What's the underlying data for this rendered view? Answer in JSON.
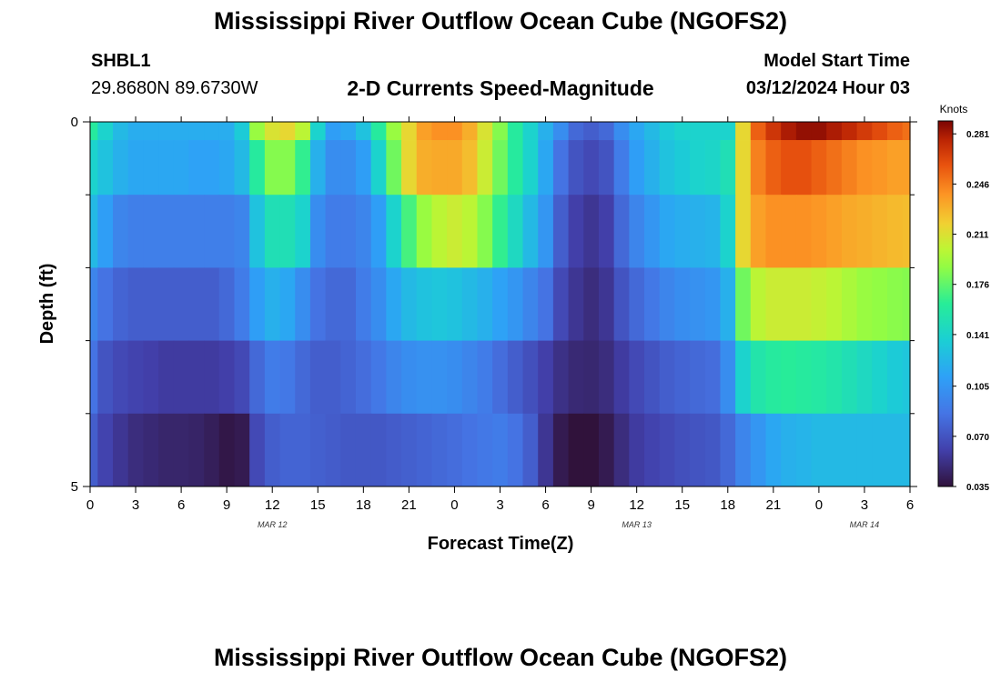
{
  "header": {
    "title": "Mississippi River Outflow Ocean Cube (NGOFS2)",
    "station": "SHBL1",
    "coordinates": "29.8680N  89.6730W",
    "subtitle": "2-D Currents Speed-Magnitude",
    "model_start_label": "Model Start Time",
    "model_start_value": "03/12/2024 Hour 03"
  },
  "footer": {
    "title": "Mississippi River Outflow Ocean Cube (NGOFS2)"
  },
  "chart_data": {
    "type": "heatmap",
    "xlabel": "Forecast Time(Z)",
    "ylabel": "Depth (ft)",
    "x_tick_labels": [
      "0",
      "3",
      "6",
      "9",
      "12",
      "15",
      "18",
      "21",
      "0",
      "3",
      "6",
      "9",
      "12",
      "15",
      "18",
      "21",
      "0",
      "3",
      "6"
    ],
    "x_hours_from_start": [
      0,
      3,
      6,
      9,
      12,
      15,
      18,
      21,
      24,
      27,
      30,
      33,
      36,
      39,
      42,
      45,
      48,
      51,
      54
    ],
    "date_labels": [
      {
        "label": "MAR 12",
        "hour": 12
      },
      {
        "label": "MAR 13",
        "hour": 36
      },
      {
        "label": "MAR 14",
        "hour": 51
      }
    ],
    "y_tick_labels": [
      "0",
      "5"
    ],
    "ylim": [
      0,
      5
    ],
    "xlim_hours": [
      0,
      54
    ],
    "depth_layers": [
      0,
      0.5,
      1.5,
      2.5,
      3.5,
      4.5
    ],
    "time_hours": [
      0,
      1,
      2,
      3,
      4,
      5,
      6,
      7,
      8,
      9,
      10,
      11,
      12,
      13,
      14,
      15,
      16,
      17,
      18,
      19,
      20,
      21,
      22,
      23,
      24,
      25,
      26,
      27,
      28,
      29,
      30,
      31,
      32,
      33,
      34,
      35,
      36,
      37,
      38,
      39,
      40,
      41,
      42,
      43,
      44,
      45,
      46,
      47,
      48,
      49,
      50,
      51,
      52,
      53,
      54
    ],
    "speed_knots": [
      [
        0.16,
        0.14,
        0.125,
        0.118,
        0.118,
        0.118,
        0.118,
        0.118,
        0.118,
        0.118,
        0.135,
        0.19,
        0.21,
        0.215,
        0.2,
        0.14,
        0.11,
        0.115,
        0.13,
        0.16,
        0.19,
        0.215,
        0.235,
        0.24,
        0.24,
        0.23,
        0.21,
        0.185,
        0.16,
        0.14,
        0.12,
        0.1,
        0.08,
        0.075,
        0.08,
        0.1,
        0.115,
        0.125,
        0.135,
        0.14,
        0.14,
        0.14,
        0.14,
        0.215,
        0.255,
        0.27,
        0.28,
        0.285,
        0.285,
        0.28,
        0.275,
        0.268,
        0.262,
        0.255,
        0.25
      ],
      [
        0.14,
        0.13,
        0.12,
        0.115,
        0.115,
        0.115,
        0.115,
        0.112,
        0.112,
        0.115,
        0.125,
        0.16,
        0.185,
        0.185,
        0.165,
        0.12,
        0.1,
        0.1,
        0.11,
        0.14,
        0.18,
        0.215,
        0.23,
        0.232,
        0.232,
        0.225,
        0.205,
        0.18,
        0.16,
        0.14,
        0.115,
        0.085,
        0.07,
        0.065,
        0.07,
        0.09,
        0.11,
        0.12,
        0.13,
        0.135,
        0.14,
        0.142,
        0.15,
        0.215,
        0.245,
        0.255,
        0.26,
        0.26,
        0.255,
        0.25,
        0.245,
        0.24,
        0.238,
        0.235,
        0.235
      ],
      [
        0.125,
        0.11,
        0.095,
        0.092,
        0.092,
        0.092,
        0.092,
        0.092,
        0.092,
        0.092,
        0.095,
        0.13,
        0.15,
        0.15,
        0.14,
        0.1,
        0.09,
        0.09,
        0.095,
        0.11,
        0.14,
        0.17,
        0.19,
        0.2,
        0.205,
        0.2,
        0.185,
        0.165,
        0.145,
        0.125,
        0.105,
        0.075,
        0.06,
        0.055,
        0.06,
        0.08,
        0.095,
        0.105,
        0.115,
        0.118,
        0.12,
        0.122,
        0.14,
        0.215,
        0.235,
        0.24,
        0.24,
        0.24,
        0.238,
        0.235,
        0.232,
        0.23,
        0.228,
        0.226,
        0.225
      ],
      [
        0.095,
        0.085,
        0.078,
        0.075,
        0.075,
        0.075,
        0.075,
        0.075,
        0.075,
        0.08,
        0.09,
        0.11,
        0.12,
        0.115,
        0.1,
        0.085,
        0.08,
        0.08,
        0.09,
        0.1,
        0.115,
        0.125,
        0.13,
        0.132,
        0.13,
        0.125,
        0.12,
        0.112,
        0.105,
        0.095,
        0.085,
        0.065,
        0.055,
        0.05,
        0.055,
        0.07,
        0.08,
        0.088,
        0.095,
        0.1,
        0.102,
        0.105,
        0.12,
        0.18,
        0.2,
        0.205,
        0.205,
        0.205,
        0.203,
        0.2,
        0.195,
        0.19,
        0.188,
        0.186,
        0.185
      ],
      [
        0.085,
        0.07,
        0.065,
        0.062,
        0.06,
        0.058,
        0.058,
        0.058,
        0.058,
        0.06,
        0.065,
        0.08,
        0.09,
        0.088,
        0.08,
        0.075,
        0.075,
        0.078,
        0.082,
        0.088,
        0.095,
        0.1,
        0.102,
        0.102,
        0.1,
        0.095,
        0.09,
        0.082,
        0.075,
        0.068,
        0.06,
        0.052,
        0.048,
        0.047,
        0.05,
        0.058,
        0.065,
        0.07,
        0.075,
        0.078,
        0.08,
        0.082,
        0.1,
        0.14,
        0.155,
        0.16,
        0.162,
        0.16,
        0.158,
        0.155,
        0.15,
        0.145,
        0.14,
        0.135,
        0.132
      ],
      [
        0.075,
        0.062,
        0.055,
        0.05,
        0.048,
        0.046,
        0.046,
        0.045,
        0.042,
        0.038,
        0.04,
        0.065,
        0.075,
        0.078,
        0.078,
        0.076,
        0.074,
        0.072,
        0.072,
        0.072,
        0.074,
        0.076,
        0.078,
        0.08,
        0.082,
        0.085,
        0.088,
        0.09,
        0.085,
        0.075,
        0.055,
        0.04,
        0.035,
        0.035,
        0.04,
        0.05,
        0.058,
        0.062,
        0.065,
        0.068,
        0.07,
        0.072,
        0.08,
        0.095,
        0.105,
        0.115,
        0.12,
        0.122,
        0.125,
        0.125,
        0.125,
        0.125,
        0.125,
        0.125,
        0.125
      ]
    ],
    "colorbar": {
      "label": "Knots",
      "ticks": [
        0.035,
        0.07,
        0.105,
        0.141,
        0.176,
        0.211,
        0.246,
        0.281
      ],
      "tick_labels": [
        "0.035",
        "0.070",
        "0.105",
        "0.141",
        "0.176",
        "0.211",
        "0.246",
        "0.281"
      ],
      "range": [
        0.035,
        0.29
      ]
    },
    "grid": false
  }
}
